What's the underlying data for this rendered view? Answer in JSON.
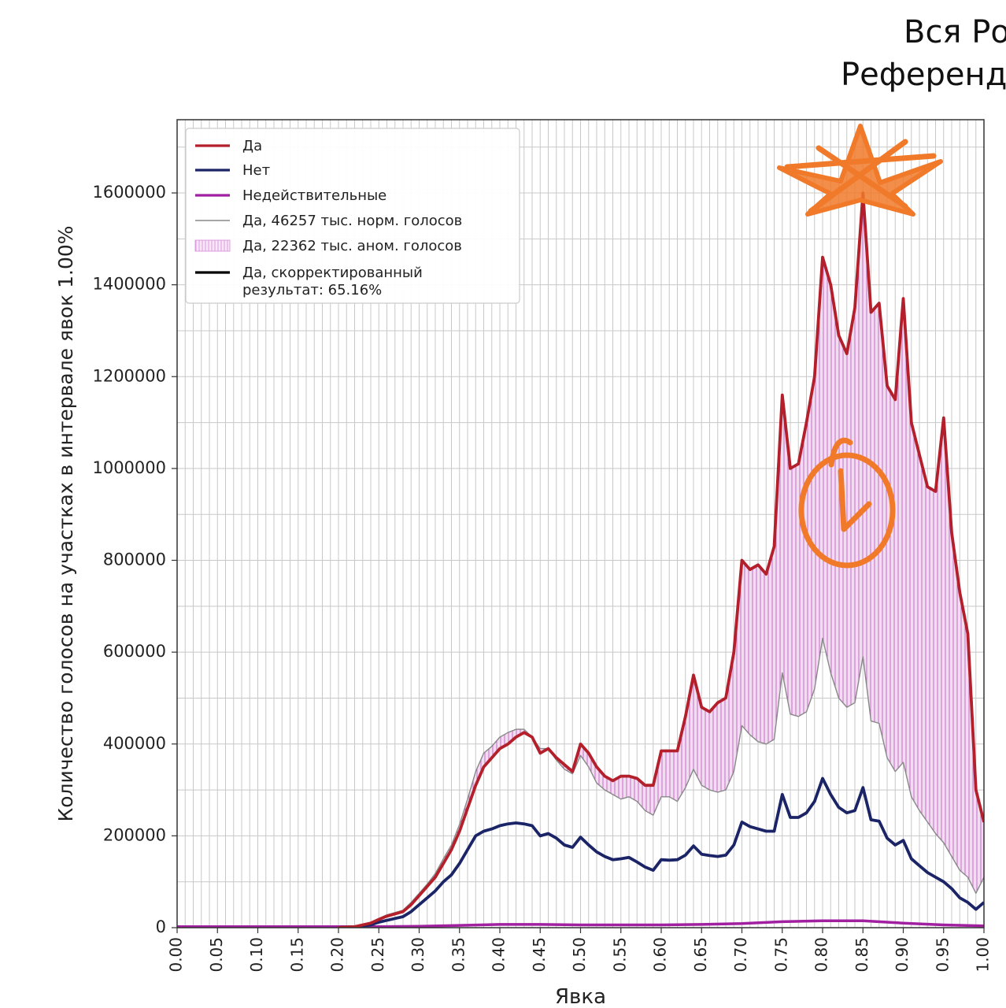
{
  "title_lines": [
    "Вся Ро",
    "Референд"
  ],
  "colors": {
    "yes": "#b3202b",
    "no": "#1a2466",
    "invalid": "#a020a0",
    "normal": "#888888",
    "anomalous_fill": "#f1dcf1",
    "anomalous_hatch": "#c060c0",
    "annotation": "#f07a2a",
    "grid": "#c8c8c8"
  },
  "chart_data": {
    "type": "line",
    "xlabel": "Явка",
    "ylabel": "Количество голосов на участках в интервале явок 1.00%",
    "xlim": [
      0,
      1
    ],
    "ylim": [
      0,
      1750000
    ],
    "x_ticks": [
      "0.00",
      "0.05",
      "0.10",
      "0.15",
      "0.20",
      "0.25",
      "0.30",
      "0.35",
      "0.40",
      "0.45",
      "0.50",
      "0.55",
      "0.60",
      "0.65",
      "0.70",
      "0.75",
      "0.80",
      "0.85",
      "0.90",
      "0.95",
      "1.00"
    ],
    "y_ticks": [
      "0",
      "200000",
      "400000",
      "600000",
      "800000",
      "1000000",
      "1200000",
      "1400000",
      "1600000"
    ],
    "grid": true,
    "legend_position": "top-left",
    "legend": [
      {
        "label": "Да",
        "style": "line",
        "color": "#b3202b"
      },
      {
        "label": "Нет",
        "style": "line",
        "color": "#1a2466"
      },
      {
        "label": "Недействительные",
        "style": "line",
        "color": "#a020a0"
      },
      {
        "label": "Да, 46257 тыс. норм. голосов",
        "style": "thin",
        "color": "#888888"
      },
      {
        "label": "Да, 22362 тыс. аном. голосов",
        "style": "thin",
        "color": "#d78ad7"
      },
      {
        "label": "Да, скорректированный",
        "label2": "результат: 65.16%",
        "style": "line",
        "color": "#000000"
      }
    ],
    "series": [
      {
        "name": "Да",
        "points": [
          [
            0.2,
            0
          ],
          [
            0.22,
            2000
          ],
          [
            0.24,
            10000
          ],
          [
            0.25,
            18000
          ],
          [
            0.26,
            25000
          ],
          [
            0.27,
            30000
          ],
          [
            0.28,
            35000
          ],
          [
            0.29,
            50000
          ],
          [
            0.3,
            70000
          ],
          [
            0.31,
            90000
          ],
          [
            0.32,
            110000
          ],
          [
            0.33,
            140000
          ],
          [
            0.34,
            170000
          ],
          [
            0.35,
            210000
          ],
          [
            0.36,
            260000
          ],
          [
            0.37,
            310000
          ],
          [
            0.38,
            350000
          ],
          [
            0.39,
            370000
          ],
          [
            0.4,
            390000
          ],
          [
            0.41,
            400000
          ],
          [
            0.42,
            415000
          ],
          [
            0.43,
            425000
          ],
          [
            0.44,
            415000
          ],
          [
            0.45,
            380000
          ],
          [
            0.46,
            390000
          ],
          [
            0.47,
            370000
          ],
          [
            0.48,
            355000
          ],
          [
            0.49,
            340000
          ],
          [
            0.5,
            400000
          ],
          [
            0.51,
            380000
          ],
          [
            0.52,
            350000
          ],
          [
            0.53,
            330000
          ],
          [
            0.54,
            320000
          ],
          [
            0.55,
            330000
          ],
          [
            0.56,
            330000
          ],
          [
            0.57,
            325000
          ],
          [
            0.58,
            310000
          ],
          [
            0.59,
            310000
          ],
          [
            0.6,
            385000
          ],
          [
            0.61,
            385000
          ],
          [
            0.62,
            385000
          ],
          [
            0.63,
            460000
          ],
          [
            0.64,
            550000
          ],
          [
            0.65,
            480000
          ],
          [
            0.66,
            470000
          ],
          [
            0.67,
            490000
          ],
          [
            0.68,
            500000
          ],
          [
            0.69,
            600000
          ],
          [
            0.7,
            800000
          ],
          [
            0.71,
            780000
          ],
          [
            0.72,
            790000
          ],
          [
            0.73,
            770000
          ],
          [
            0.74,
            830000
          ],
          [
            0.75,
            1160000
          ],
          [
            0.76,
            1000000
          ],
          [
            0.77,
            1010000
          ],
          [
            0.78,
            1100000
          ],
          [
            0.79,
            1200000
          ],
          [
            0.8,
            1460000
          ],
          [
            0.81,
            1400000
          ],
          [
            0.82,
            1290000
          ],
          [
            0.83,
            1250000
          ],
          [
            0.84,
            1350000
          ],
          [
            0.85,
            1600000
          ],
          [
            0.86,
            1340000
          ],
          [
            0.87,
            1360000
          ],
          [
            0.88,
            1180000
          ],
          [
            0.89,
            1150000
          ],
          [
            0.9,
            1370000
          ],
          [
            0.91,
            1100000
          ],
          [
            0.92,
            1030000
          ],
          [
            0.93,
            960000
          ],
          [
            0.94,
            950000
          ],
          [
            0.95,
            1110000
          ],
          [
            0.96,
            860000
          ],
          [
            0.97,
            730000
          ],
          [
            0.98,
            640000
          ],
          [
            0.99,
            300000
          ],
          [
            1.0,
            230000
          ]
        ]
      },
      {
        "name": "Нет",
        "points": [
          [
            0.2,
            0
          ],
          [
            0.22,
            2000
          ],
          [
            0.24,
            6000
          ],
          [
            0.25,
            12000
          ],
          [
            0.26,
            16000
          ],
          [
            0.27,
            20000
          ],
          [
            0.28,
            24000
          ],
          [
            0.29,
            35000
          ],
          [
            0.3,
            50000
          ],
          [
            0.31,
            65000
          ],
          [
            0.32,
            80000
          ],
          [
            0.33,
            100000
          ],
          [
            0.34,
            115000
          ],
          [
            0.35,
            140000
          ],
          [
            0.36,
            170000
          ],
          [
            0.37,
            200000
          ],
          [
            0.38,
            210000
          ],
          [
            0.39,
            215000
          ],
          [
            0.4,
            222000
          ],
          [
            0.41,
            226000
          ],
          [
            0.42,
            228000
          ],
          [
            0.43,
            226000
          ],
          [
            0.44,
            222000
          ],
          [
            0.45,
            200000
          ],
          [
            0.46,
            205000
          ],
          [
            0.47,
            195000
          ],
          [
            0.48,
            180000
          ],
          [
            0.49,
            175000
          ],
          [
            0.5,
            197000
          ],
          [
            0.51,
            180000
          ],
          [
            0.52,
            165000
          ],
          [
            0.53,
            155000
          ],
          [
            0.54,
            148000
          ],
          [
            0.55,
            150000
          ],
          [
            0.56,
            153000
          ],
          [
            0.57,
            143000
          ],
          [
            0.58,
            132000
          ],
          [
            0.59,
            125000
          ],
          [
            0.6,
            148000
          ],
          [
            0.61,
            147000
          ],
          [
            0.62,
            148000
          ],
          [
            0.63,
            158000
          ],
          [
            0.64,
            178000
          ],
          [
            0.65,
            160000
          ],
          [
            0.66,
            157000
          ],
          [
            0.67,
            155000
          ],
          [
            0.68,
            158000
          ],
          [
            0.69,
            180000
          ],
          [
            0.7,
            230000
          ],
          [
            0.71,
            220000
          ],
          [
            0.72,
            215000
          ],
          [
            0.73,
            210000
          ],
          [
            0.74,
            210000
          ],
          [
            0.75,
            290000
          ],
          [
            0.76,
            240000
          ],
          [
            0.77,
            240000
          ],
          [
            0.78,
            250000
          ],
          [
            0.79,
            275000
          ],
          [
            0.8,
            325000
          ],
          [
            0.81,
            290000
          ],
          [
            0.82,
            262000
          ],
          [
            0.83,
            250000
          ],
          [
            0.84,
            255000
          ],
          [
            0.85,
            305000
          ],
          [
            0.86,
            235000
          ],
          [
            0.87,
            232000
          ],
          [
            0.88,
            195000
          ],
          [
            0.89,
            180000
          ],
          [
            0.9,
            190000
          ],
          [
            0.91,
            150000
          ],
          [
            0.92,
            135000
          ],
          [
            0.93,
            120000
          ],
          [
            0.94,
            110000
          ],
          [
            0.95,
            100000
          ],
          [
            0.96,
            85000
          ],
          [
            0.97,
            65000
          ],
          [
            0.98,
            55000
          ],
          [
            0.99,
            40000
          ],
          [
            1.0,
            55000
          ]
        ]
      },
      {
        "name": "Недействительные",
        "points": [
          [
            0.0,
            2000
          ],
          [
            0.2,
            2000
          ],
          [
            0.25,
            2000
          ],
          [
            0.3,
            3000
          ],
          [
            0.35,
            5000
          ],
          [
            0.4,
            7000
          ],
          [
            0.45,
            7000
          ],
          [
            0.5,
            6000
          ],
          [
            0.55,
            6000
          ],
          [
            0.6,
            6000
          ],
          [
            0.65,
            7000
          ],
          [
            0.7,
            9000
          ],
          [
            0.75,
            13000
          ],
          [
            0.8,
            15000
          ],
          [
            0.85,
            15000
          ],
          [
            0.9,
            10000
          ],
          [
            0.95,
            6000
          ],
          [
            1.0,
            4000
          ]
        ]
      },
      {
        "name": "Да, 46257 тыс. норм. голосов",
        "points": [
          [
            0.2,
            0
          ],
          [
            0.22,
            2000
          ],
          [
            0.24,
            10000
          ],
          [
            0.25,
            20000
          ],
          [
            0.26,
            28000
          ],
          [
            0.27,
            33000
          ],
          [
            0.28,
            38000
          ],
          [
            0.29,
            55000
          ],
          [
            0.3,
            75000
          ],
          [
            0.31,
            95000
          ],
          [
            0.32,
            118000
          ],
          [
            0.33,
            150000
          ],
          [
            0.34,
            180000
          ],
          [
            0.35,
            225000
          ],
          [
            0.36,
            280000
          ],
          [
            0.37,
            340000
          ],
          [
            0.38,
            380000
          ],
          [
            0.39,
            395000
          ],
          [
            0.4,
            415000
          ],
          [
            0.41,
            425000
          ],
          [
            0.42,
            432000
          ],
          [
            0.43,
            432000
          ],
          [
            0.44,
            415000
          ],
          [
            0.45,
            390000
          ],
          [
            0.46,
            390000
          ],
          [
            0.47,
            365000
          ],
          [
            0.48,
            345000
          ],
          [
            0.49,
            335000
          ],
          [
            0.5,
            375000
          ],
          [
            0.51,
            350000
          ],
          [
            0.52,
            315000
          ],
          [
            0.53,
            300000
          ],
          [
            0.54,
            290000
          ],
          [
            0.55,
            280000
          ],
          [
            0.56,
            285000
          ],
          [
            0.57,
            275000
          ],
          [
            0.58,
            255000
          ],
          [
            0.59,
            245000
          ],
          [
            0.6,
            285000
          ],
          [
            0.61,
            285000
          ],
          [
            0.62,
            275000
          ],
          [
            0.63,
            305000
          ],
          [
            0.64,
            345000
          ],
          [
            0.65,
            310000
          ],
          [
            0.66,
            300000
          ],
          [
            0.67,
            295000
          ],
          [
            0.68,
            300000
          ],
          [
            0.69,
            340000
          ],
          [
            0.7,
            440000
          ],
          [
            0.71,
            420000
          ],
          [
            0.72,
            405000
          ],
          [
            0.73,
            400000
          ],
          [
            0.74,
            410000
          ],
          [
            0.75,
            555000
          ],
          [
            0.76,
            465000
          ],
          [
            0.77,
            460000
          ],
          [
            0.78,
            470000
          ],
          [
            0.79,
            520000
          ],
          [
            0.8,
            630000
          ],
          [
            0.81,
            555000
          ],
          [
            0.82,
            500000
          ],
          [
            0.83,
            480000
          ],
          [
            0.84,
            490000
          ],
          [
            0.85,
            590000
          ],
          [
            0.86,
            450000
          ],
          [
            0.87,
            445000
          ],
          [
            0.88,
            370000
          ],
          [
            0.89,
            340000
          ],
          [
            0.9,
            360000
          ],
          [
            0.91,
            285000
          ],
          [
            0.92,
            255000
          ],
          [
            0.93,
            230000
          ],
          [
            0.94,
            205000
          ],
          [
            0.95,
            185000
          ],
          [
            0.96,
            155000
          ],
          [
            0.97,
            125000
          ],
          [
            0.98,
            110000
          ],
          [
            0.99,
            75000
          ],
          [
            1.0,
            110000
          ]
        ]
      }
    ],
    "annotations": [
      {
        "type": "hand-drawn-star",
        "color": "#f07a2a"
      },
      {
        "type": "hand-drawn-circled-symbol",
        "color": "#f07a2a"
      }
    ]
  }
}
